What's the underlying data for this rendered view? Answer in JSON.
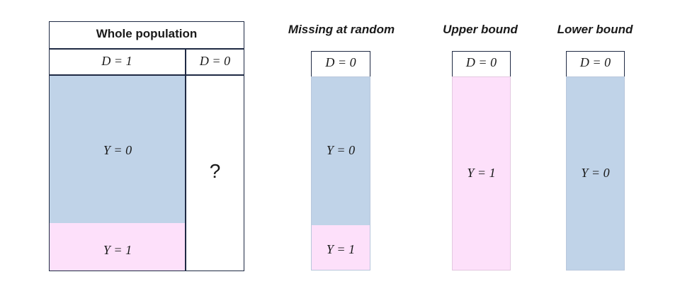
{
  "whole_population": {
    "title": "Whole population",
    "header_d1": "D = 1",
    "header_d0": "D = 0",
    "y0_label": "Y = 0",
    "y1_label": "Y = 1",
    "unknown_label": "?"
  },
  "missing_at_random": {
    "title": "Missing at random",
    "header": "D = 0",
    "y0_label": "Y = 0",
    "y1_label": "Y = 1"
  },
  "upper_bound": {
    "title": "Upper bound",
    "header": "D = 0",
    "y1_label": "Y = 1"
  },
  "lower_bound": {
    "title": "Lower bound",
    "header": "D = 0",
    "y0_label": "Y = 0"
  },
  "colors": {
    "y0_fill": "#c0d3e8",
    "y1_fill": "#fde0fa",
    "border": "#1f2a44"
  }
}
